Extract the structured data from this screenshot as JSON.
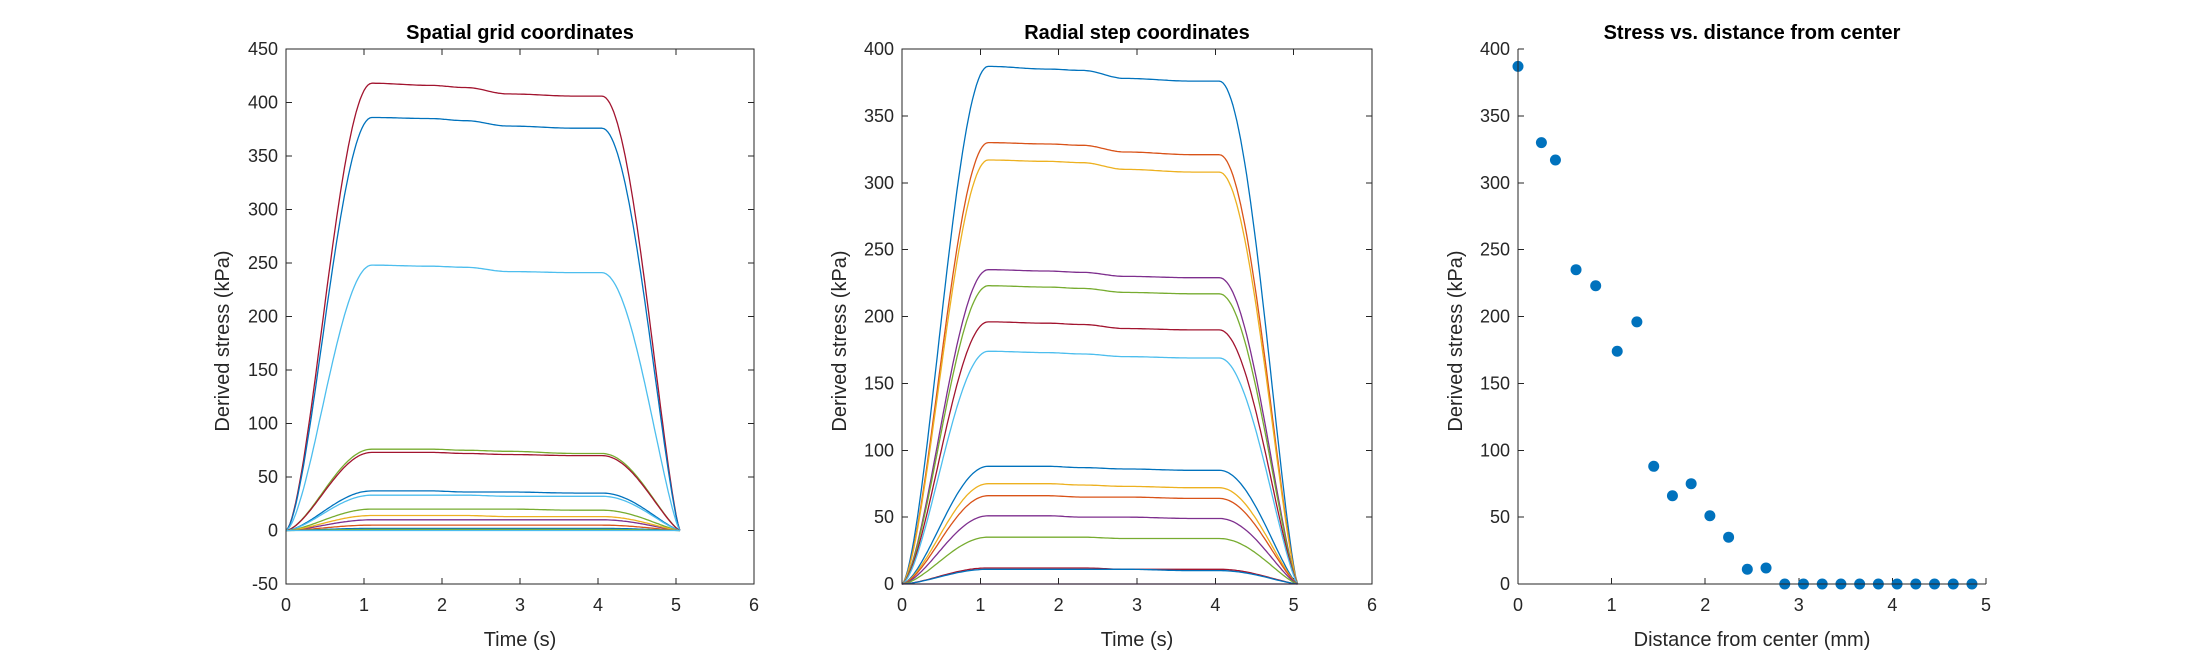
{
  "figure": {
    "background": "#ffffff"
  },
  "chart_data": [
    {
      "id": "spatial",
      "type": "line",
      "title": "Spatial grid coordinates",
      "xlabel": "Time (s)",
      "ylabel": "Derived stress (kPa)",
      "xlim": [
        0,
        6
      ],
      "ylim": [
        -50,
        450
      ],
      "xticks": [
        0,
        1,
        2,
        3,
        4,
        5,
        6
      ],
      "yticks": [
        -50,
        0,
        50,
        100,
        150,
        200,
        250,
        300,
        350,
        400,
        450
      ],
      "box": true,
      "series": [
        {
          "color": "#a2142f",
          "plateau": [
            418,
            416,
            414,
            408,
            406
          ]
        },
        {
          "color": "#0072bd",
          "plateau": [
            386,
            385,
            383,
            378,
            376
          ]
        },
        {
          "color": "#4dbeee",
          "plateau": [
            248,
            247,
            246,
            242,
            241
          ]
        },
        {
          "color": "#77ac30",
          "plateau": [
            76,
            76,
            75,
            74,
            72
          ]
        },
        {
          "color": "#a2142f",
          "plateau": [
            73,
            73,
            72,
            71,
            70
          ]
        },
        {
          "color": "#0072bd",
          "plateau": [
            37,
            37,
            36,
            36,
            35
          ]
        },
        {
          "color": "#4dbeee",
          "plateau": [
            33,
            33,
            33,
            32,
            32
          ]
        },
        {
          "color": "#77ac30",
          "plateau": [
            20,
            20,
            20,
            20,
            19
          ]
        },
        {
          "color": "#7e2f8e",
          "plateau": [
            10,
            10,
            10,
            10,
            10
          ]
        },
        {
          "color": "#edb120",
          "plateau": [
            14,
            14,
            14,
            13,
            13
          ]
        },
        {
          "color": "#d95319",
          "plateau": [
            5,
            5,
            5,
            5,
            5
          ]
        },
        {
          "color": "#0072bd",
          "plateau": [
            2,
            2,
            2,
            2,
            2
          ]
        },
        {
          "color": "#77ac30",
          "plateau": [
            1,
            1,
            1,
            1,
            1
          ]
        },
        {
          "color": "#4dbeee",
          "plateau": [
            0,
            0,
            0,
            0,
            0
          ]
        }
      ]
    },
    {
      "id": "radial",
      "type": "line",
      "title": "Radial step coordinates",
      "xlabel": "Time (s)",
      "ylabel": "Derived stress (kPa)",
      "xlim": [
        0,
        6
      ],
      "ylim": [
        0,
        400
      ],
      "xticks": [
        0,
        1,
        2,
        3,
        4,
        5,
        6
      ],
      "yticks": [
        0,
        50,
        100,
        150,
        200,
        250,
        300,
        350,
        400
      ],
      "box": true,
      "series": [
        {
          "color": "#0072bd",
          "plateau": [
            387,
            385,
            384,
            378,
            376
          ]
        },
        {
          "color": "#d95319",
          "plateau": [
            330,
            329,
            328,
            323,
            321
          ]
        },
        {
          "color": "#edb120",
          "plateau": [
            317,
            316,
            315,
            310,
            308
          ]
        },
        {
          "color": "#7e2f8e",
          "plateau": [
            235,
            234,
            233,
            230,
            229
          ]
        },
        {
          "color": "#77ac30",
          "plateau": [
            223,
            222,
            221,
            218,
            217
          ]
        },
        {
          "color": "#a2142f",
          "plateau": [
            196,
            195,
            194,
            191,
            190
          ]
        },
        {
          "color": "#4dbeee",
          "plateau": [
            174,
            173,
            172,
            170,
            169
          ]
        },
        {
          "color": "#0072bd",
          "plateau": [
            88,
            88,
            87,
            86,
            85
          ]
        },
        {
          "color": "#edb120",
          "plateau": [
            75,
            75,
            74,
            73,
            72
          ]
        },
        {
          "color": "#d95319",
          "plateau": [
            66,
            66,
            65,
            65,
            64
          ]
        },
        {
          "color": "#7e2f8e",
          "plateau": [
            51,
            51,
            50,
            50,
            49
          ]
        },
        {
          "color": "#77ac30",
          "plateau": [
            35,
            35,
            35,
            34,
            34
          ]
        },
        {
          "color": "#a2142f",
          "plateau": [
            12,
            12,
            12,
            11,
            11
          ]
        },
        {
          "color": "#0072bd",
          "plateau": [
            11,
            11,
            11,
            11,
            10
          ]
        },
        {
          "color": "#7e2f8e",
          "plateau": [
            0,
            0,
            0,
            0,
            0
          ]
        }
      ]
    },
    {
      "id": "distance",
      "type": "scatter",
      "title": "Stress vs. distance from center",
      "xlabel": "Distance from center (mm)",
      "ylabel": "Derived stress (kPa)",
      "xlim": [
        0,
        5
      ],
      "ylim": [
        0,
        400
      ],
      "xticks": [
        0,
        1,
        2,
        3,
        4,
        5
      ],
      "yticks": [
        0,
        50,
        100,
        150,
        200,
        250,
        300,
        350,
        400
      ],
      "box": false,
      "color": "#0072bd",
      "x": [
        0,
        0.25,
        0.4,
        0.62,
        0.83,
        1.06,
        1.27,
        1.45,
        1.65,
        1.85,
        2.05,
        2.25,
        2.45,
        2.65,
        2.85,
        3.05,
        3.25,
        3.45,
        3.65,
        3.85,
        4.05,
        4.25,
        4.45,
        4.65,
        4.85
      ],
      "y": [
        387,
        330,
        317,
        235,
        223,
        174,
        196,
        88,
        66,
        75,
        51,
        35,
        11,
        12,
        0,
        0,
        0,
        0,
        0,
        0,
        0,
        0,
        0,
        0,
        0
      ]
    }
  ]
}
